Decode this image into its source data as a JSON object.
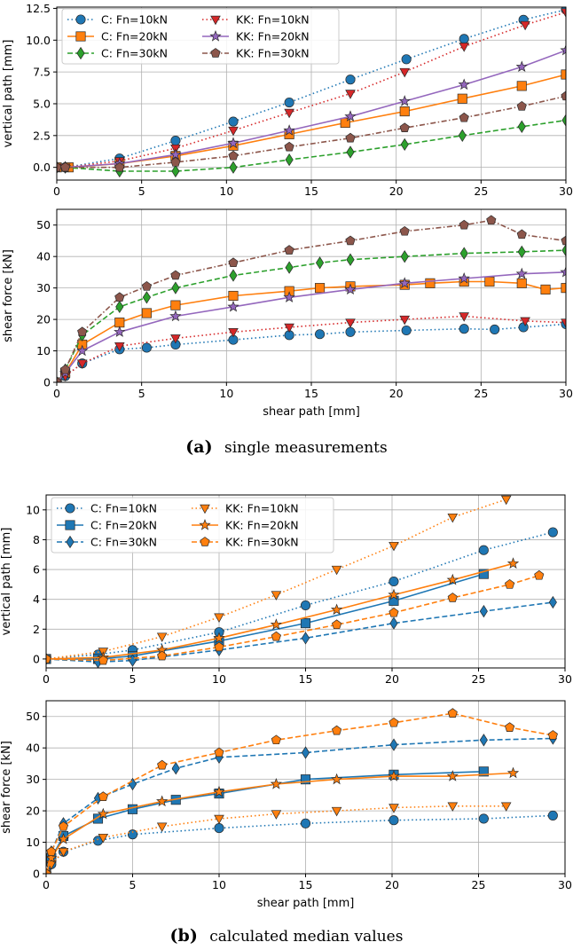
{
  "colors": {
    "c10": "#1f77b4",
    "c20": "#ff7f0e",
    "c30": "#2ca02c",
    "kk10": "#d62728",
    "kk20": "#9467bd",
    "kk30": "#8c564b",
    "b_c": "#1f77b4",
    "b_kk": "#ff7f0e"
  },
  "captions": [
    {
      "label": "(a)",
      "text": "single measurements"
    },
    {
      "label": "(b)",
      "text": "calculated median values"
    }
  ],
  "chart_data": [
    {
      "type": "line",
      "xlabel": "",
      "ylabel": "vertical path [mm]",
      "xlim": [
        0,
        30
      ],
      "ylim": [
        -1.0,
        12.6
      ],
      "xticks": [
        "0",
        "5",
        "10",
        "15",
        "20",
        "25",
        "30"
      ],
      "yticks": [
        "0.0",
        "2.5",
        "5.0",
        "7.5",
        "10.0",
        "12.5"
      ],
      "grid": true,
      "legend": "top-left",
      "series": [
        {
          "name": "C: Fn=10kN",
          "color": "c10",
          "dash": "dot",
          "marker": "circle",
          "x": [
            0,
            0.5,
            3.7,
            7,
            10.4,
            13.7,
            17.3,
            20.6,
            24,
            27.5,
            30
          ],
          "y": [
            0,
            0,
            0.7,
            2.1,
            3.6,
            5.1,
            6.9,
            8.5,
            10.1,
            11.6,
            12.4
          ]
        },
        {
          "name": "C: Fn=20kN",
          "color": "c20",
          "dash": "solid",
          "marker": "square",
          "x": [
            0,
            0.7,
            3.7,
            7,
            10.4,
            13.7,
            17,
            20.5,
            23.9,
            27.4,
            30
          ],
          "y": [
            0,
            0,
            0.3,
            0.9,
            1.7,
            2.6,
            3.5,
            4.4,
            5.4,
            6.4,
            7.3
          ]
        },
        {
          "name": "C: Fn=30kN",
          "color": "c30",
          "dash": "dash",
          "marker": "diamond",
          "x": [
            0,
            0.5,
            3.7,
            7,
            10.4,
            13.7,
            17.3,
            20.5,
            23.9,
            27.4,
            30
          ],
          "y": [
            0,
            0,
            -0.3,
            -0.3,
            0,
            0.6,
            1.2,
            1.8,
            2.5,
            3.2,
            3.7
          ]
        },
        {
          "name": "KK: Fn=10kN",
          "color": "kk10",
          "dash": "dot",
          "marker": "triangle-down",
          "x": [
            0,
            0.5,
            3.7,
            7,
            10.4,
            13.7,
            17.3,
            20.5,
            24,
            27.6,
            30
          ],
          "y": [
            0,
            0,
            0.5,
            1.5,
            2.9,
            4.3,
            5.8,
            7.5,
            9.5,
            11.2,
            12.2
          ]
        },
        {
          "name": "KK: Fn=20kN",
          "color": "kk20",
          "dash": "solid",
          "marker": "star",
          "x": [
            0,
            0.5,
            3.7,
            7,
            10.4,
            13.7,
            17.3,
            20.5,
            24,
            27.4,
            30
          ],
          "y": [
            0,
            0,
            0.3,
            1.0,
            1.9,
            2.9,
            4.0,
            5.2,
            6.5,
            7.9,
            9.2
          ]
        },
        {
          "name": "KK: Fn=30kN",
          "color": "kk30",
          "dash": "dashdot",
          "marker": "pentagon",
          "x": [
            0,
            0.5,
            3.7,
            7,
            10.4,
            13.7,
            17.3,
            20.5,
            24,
            27.4,
            30
          ],
          "y": [
            0,
            0,
            0,
            0.4,
            0.9,
            1.6,
            2.3,
            3.1,
            3.9,
            4.8,
            5.6
          ]
        }
      ]
    },
    {
      "type": "line",
      "xlabel": "shear path [mm]",
      "ylabel": "shear force [kN]",
      "xlim": [
        0,
        30
      ],
      "ylim": [
        0,
        55
      ],
      "xticks": [
        "0",
        "5",
        "10",
        "15",
        "20",
        "25",
        "30"
      ],
      "yticks": [
        "0",
        "10",
        "20",
        "30",
        "40",
        "50"
      ],
      "grid": true,
      "legend": "",
      "series": [
        {
          "name": "C: Fn=10kN",
          "color": "c10",
          "dash": "dot",
          "marker": "circle",
          "x": [
            0,
            0.5,
            1.5,
            3.7,
            5.3,
            7,
            10.4,
            13.7,
            15.5,
            17.3,
            20.6,
            24,
            25.8,
            27.5,
            30
          ],
          "y": [
            0,
            2,
            6,
            10.5,
            11,
            12,
            13.5,
            15,
            15.3,
            16,
            16.5,
            17,
            16.8,
            17.5,
            18.5
          ]
        },
        {
          "name": "C: Fn=20kN",
          "color": "c20",
          "dash": "solid",
          "marker": "square",
          "x": [
            0,
            0.5,
            1.5,
            3.7,
            5.3,
            7,
            10.4,
            13.7,
            15.5,
            17.3,
            20.5,
            22,
            24,
            25.5,
            27.4,
            28.8,
            30
          ],
          "y": [
            0,
            3,
            12,
            19,
            22,
            24.5,
            27.5,
            29,
            30,
            30.5,
            31,
            31.5,
            32,
            32,
            31.5,
            29.5,
            30
          ]
        },
        {
          "name": "C: Fn=30kN",
          "color": "c30",
          "dash": "dash",
          "marker": "diamond",
          "x": [
            0,
            0.5,
            1.5,
            3.7,
            5.3,
            7,
            10.4,
            13.7,
            15.5,
            17.3,
            20.5,
            24,
            27.4,
            30
          ],
          "y": [
            0,
            4,
            15,
            24,
            27,
            30,
            34,
            36.5,
            38,
            39,
            40,
            41,
            41.5,
            42
          ]
        },
        {
          "name": "KK: Fn=10kN",
          "color": "kk10",
          "dash": "dot",
          "marker": "triangle-down",
          "x": [
            0,
            0.5,
            1.5,
            3.7,
            7,
            10.4,
            13.7,
            17.3,
            20.5,
            24,
            27.6,
            30
          ],
          "y": [
            0,
            2,
            6,
            11.5,
            14,
            16,
            17.5,
            19,
            20,
            21,
            19.5,
            19
          ]
        },
        {
          "name": "KK: Fn=20kN",
          "color": "kk20",
          "dash": "solid",
          "marker": "star",
          "x": [
            0,
            0.5,
            1.5,
            3.7,
            7,
            10.4,
            13.7,
            17.3,
            20.5,
            24,
            27.4,
            30
          ],
          "y": [
            0,
            3,
            10,
            16,
            21,
            24,
            27,
            29.5,
            31.5,
            33,
            34.5,
            35
          ]
        },
        {
          "name": "KK: Fn=30kN",
          "color": "kk30",
          "dash": "dashdot",
          "marker": "pentagon",
          "x": [
            0,
            0.5,
            1.5,
            3.7,
            5.3,
            7,
            10.4,
            13.7,
            17.3,
            20.5,
            24,
            25.6,
            27.4,
            30
          ],
          "y": [
            0,
            4,
            16,
            27,
            30.5,
            34,
            38,
            42,
            45,
            48,
            50,
            51.5,
            47,
            45
          ]
        }
      ]
    },
    {
      "type": "line",
      "xlabel": "",
      "ylabel": "vertical path [mm]",
      "xlim": [
        0,
        30
      ],
      "ylim": [
        -0.6,
        11
      ],
      "xticks": [
        "0",
        "5",
        "10",
        "15",
        "20",
        "25",
        "30"
      ],
      "yticks": [
        "0",
        "2",
        "4",
        "6",
        "8",
        "10"
      ],
      "grid": true,
      "legend": "top-left",
      "series": [
        {
          "name": "C: Fn=10kN",
          "color": "b_c",
          "dash": "dot",
          "marker": "circle",
          "x": [
            0,
            3,
            5,
            10,
            15,
            20.1,
            25.3,
            29.3
          ],
          "y": [
            0,
            0.3,
            0.6,
            1.8,
            3.6,
            5.2,
            7.3,
            8.5
          ]
        },
        {
          "name": "C: Fn=20kN",
          "color": "b_c",
          "dash": "solid",
          "marker": "square",
          "x": [
            0,
            3,
            5,
            10,
            15,
            20.1,
            25.3
          ],
          "y": [
            0,
            0,
            0.2,
            1.2,
            2.4,
            3.9,
            5.7
          ]
        },
        {
          "name": "C: Fn=30kN",
          "color": "b_c",
          "dash": "dash",
          "marker": "diamond",
          "x": [
            0,
            3,
            5,
            10,
            15,
            20.1,
            25.3,
            29.3
          ],
          "y": [
            0,
            -0.2,
            -0.1,
            0.6,
            1.4,
            2.4,
            3.2,
            3.8
          ]
        },
        {
          "name": "KK: Fn=10kN",
          "color": "b_kk",
          "dash": "dot",
          "marker": "triangle-down",
          "x": [
            0,
            3.3,
            6.7,
            10,
            13.3,
            16.8,
            20.1,
            23.5,
            26.6
          ],
          "y": [
            0,
            0.5,
            1.5,
            2.8,
            4.3,
            6.0,
            7.6,
            9.5,
            10.7
          ]
        },
        {
          "name": "KK: Fn=20kN",
          "color": "b_kk",
          "dash": "solid",
          "marker": "star",
          "x": [
            0,
            3.3,
            6.7,
            10,
            13.3,
            16.8,
            20.1,
            23.5,
            27.0
          ],
          "y": [
            0,
            0.1,
            0.6,
            1.4,
            2.3,
            3.3,
            4.3,
            5.3,
            6.4
          ]
        },
        {
          "name": "KK: Fn=30kN",
          "color": "b_kk",
          "dash": "dash",
          "marker": "pentagon",
          "x": [
            0,
            3.3,
            6.7,
            10,
            13.3,
            16.8,
            20.1,
            23.5,
            26.8,
            28.5
          ],
          "y": [
            0,
            -0.1,
            0.2,
            0.8,
            1.5,
            2.3,
            3.1,
            4.1,
            5.0,
            5.6
          ]
        }
      ]
    },
    {
      "type": "line",
      "xlabel": "shear path [mm]",
      "ylabel": "shear force [kN]",
      "xlim": [
        0,
        30
      ],
      "ylim": [
        0,
        55
      ],
      "xticks": [
        "0",
        "5",
        "10",
        "15",
        "20",
        "25",
        "30"
      ],
      "yticks": [
        "0",
        "10",
        "20",
        "30",
        "40",
        "50"
      ],
      "grid": true,
      "legend": "",
      "series": [
        {
          "name": "C: Fn=10kN",
          "color": "b_c",
          "dash": "dot",
          "marker": "circle",
          "x": [
            0,
            0.3,
            1,
            3,
            5,
            10,
            15,
            20.1,
            25.3,
            29.3
          ],
          "y": [
            0,
            3,
            7,
            10.5,
            12.5,
            14.5,
            16,
            17,
            17.5,
            18.5
          ]
        },
        {
          "name": "C: Fn=20kN",
          "color": "b_c",
          "dash": "solid",
          "marker": "square",
          "x": [
            0,
            0.3,
            1,
            3,
            5,
            7.5,
            10,
            15,
            20.1,
            25.3
          ],
          "y": [
            0,
            5,
            12,
            17.5,
            20.5,
            23.5,
            25.5,
            30,
            31.5,
            32.5
          ]
        },
        {
          "name": "C: Fn=30kN",
          "color": "b_c",
          "dash": "dash",
          "marker": "diamond",
          "x": [
            0,
            0.3,
            1,
            3,
            5,
            7.5,
            10,
            15,
            20.1,
            25.3,
            29.3
          ],
          "y": [
            0,
            7,
            16,
            24,
            28.5,
            33.5,
            37,
            38.5,
            41,
            42.5,
            43
          ]
        },
        {
          "name": "KK: Fn=10kN",
          "color": "b_kk",
          "dash": "dot",
          "marker": "triangle-down",
          "x": [
            0,
            0.3,
            1,
            3.3,
            6.7,
            10,
            13.3,
            16.8,
            20.1,
            23.5,
            26.6
          ],
          "y": [
            0,
            3,
            7,
            11.5,
            15,
            17.5,
            19,
            20,
            21,
            21.5,
            21.5
          ]
        },
        {
          "name": "KK: Fn=20kN",
          "color": "b_kk",
          "dash": "solid",
          "marker": "star",
          "x": [
            0,
            0.3,
            1,
            3.3,
            6.7,
            10,
            13.3,
            16.8,
            20.1,
            23.5,
            27.0
          ],
          "y": [
            0,
            5,
            11,
            19,
            23,
            26,
            28.5,
            30,
            31,
            31,
            32
          ]
        },
        {
          "name": "KK: Fn=30kN",
          "color": "b_kk",
          "dash": "dash",
          "marker": "pentagon",
          "x": [
            0,
            0.3,
            1,
            3.3,
            6.7,
            10,
            13.3,
            16.8,
            20.1,
            23.5,
            26.8,
            29.3
          ],
          "y": [
            0,
            7,
            15,
            24.5,
            34.5,
            38.5,
            42.5,
            45.5,
            48,
            51,
            46.5,
            44
          ]
        }
      ]
    }
  ]
}
